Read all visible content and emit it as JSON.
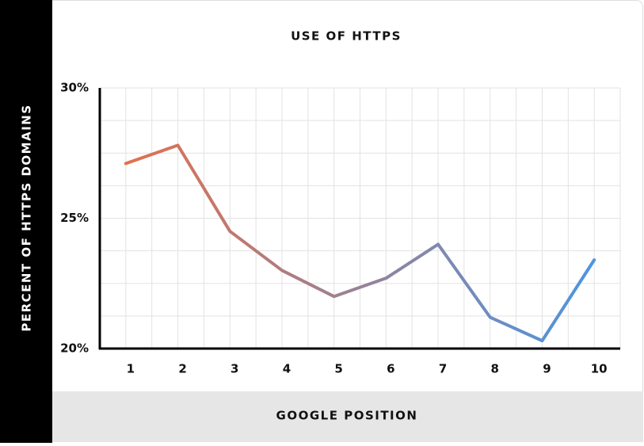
{
  "chart_data": {
    "type": "line",
    "title": "USE OF HTTPS",
    "x_label": "GOOGLE POSITION",
    "y_label": "PERCENT OF HTTPS DOMAINS",
    "categories": [
      "1",
      "2",
      "3",
      "4",
      "5",
      "6",
      "7",
      "8",
      "9",
      "10"
    ],
    "values": [
      27.1,
      27.8,
      24.5,
      23.0,
      22.0,
      22.7,
      24.0,
      21.2,
      20.3,
      23.4
    ],
    "gradient": [
      "#e2704e",
      "#4d95e2"
    ],
    "ylim": [
      20,
      30
    ],
    "yticks": [
      {
        "value": 20,
        "label": "20%"
      },
      {
        "value": 25,
        "label": "25%"
      },
      {
        "value": 30,
        "label": "30%"
      }
    ],
    "grid": true
  }
}
